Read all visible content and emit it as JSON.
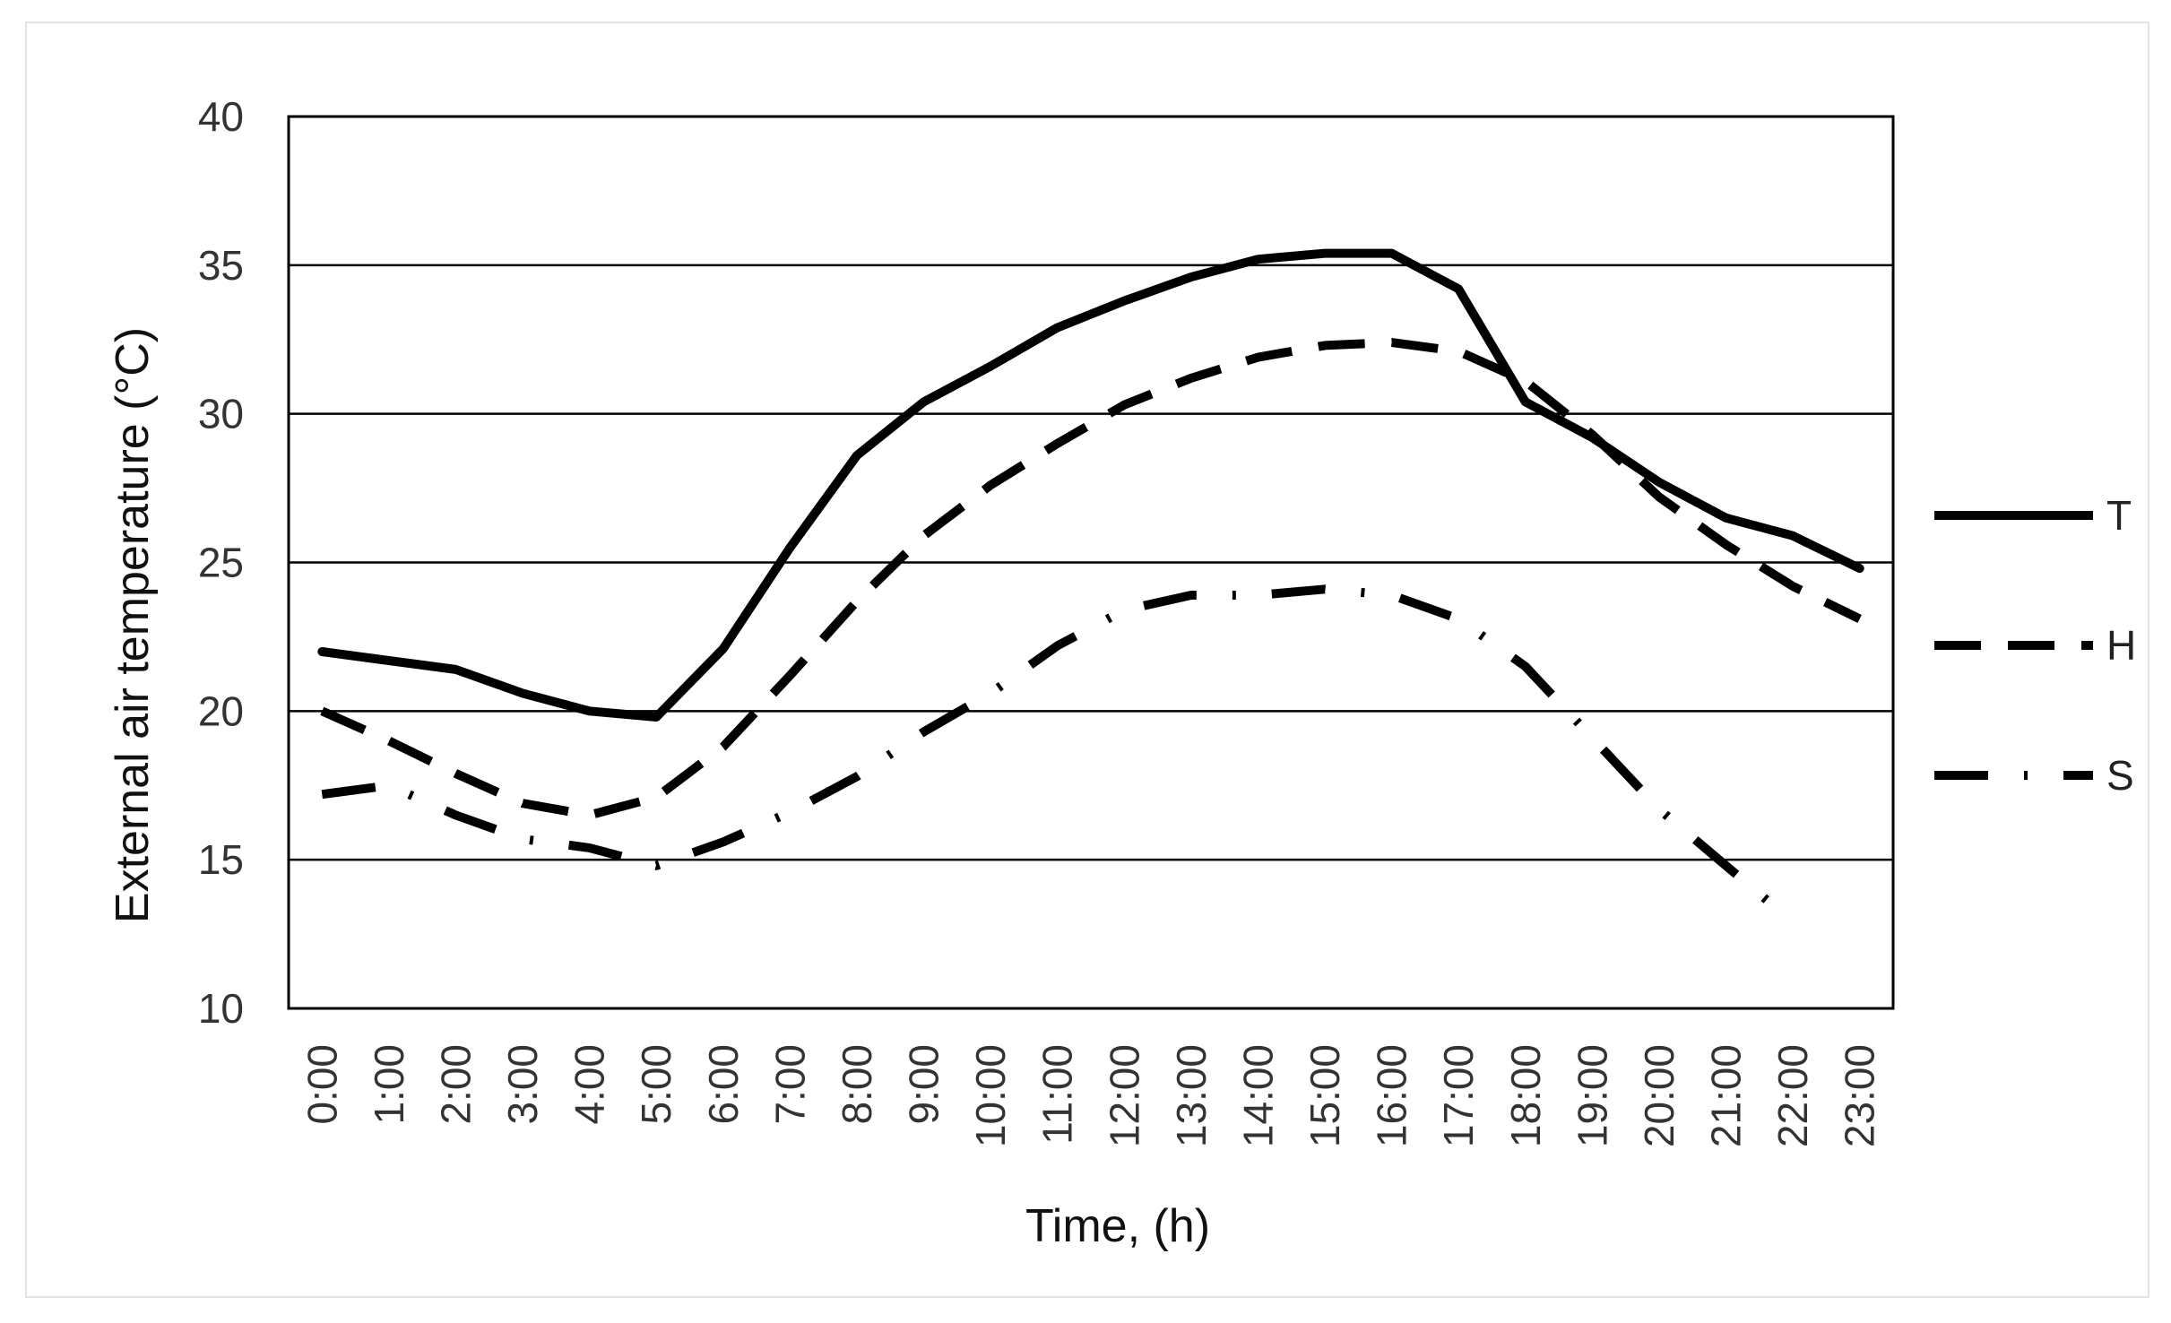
{
  "chart_data": {
    "type": "line",
    "title": "",
    "xlabel": "Time, (h)",
    "ylabel": "External air temperature (°C)",
    "ylim": [
      10,
      40
    ],
    "yticks": [
      "10",
      "15",
      "20",
      "25",
      "30",
      "35",
      "40"
    ],
    "grid": "horizontal",
    "legend_position": "right",
    "categories": [
      "0:00",
      "1:00",
      "2:00",
      "3:00",
      "4:00",
      "5:00",
      "6:00",
      "7:00",
      "8:00",
      "9:00",
      "10:00",
      "11:00",
      "12:00",
      "13:00",
      "14:00",
      "15:00",
      "16:00",
      "17:00",
      "18:00",
      "19:00",
      "20:00",
      "21:00",
      "22:00",
      "23:00"
    ],
    "series": [
      {
        "name": "T",
        "style": "solid",
        "values": [
          22.0,
          21.7,
          21.4,
          20.6,
          20.0,
          19.8,
          22.1,
          25.5,
          28.6,
          30.4,
          31.6,
          32.9,
          33.8,
          34.6,
          35.2,
          35.4,
          35.4,
          34.2,
          30.4,
          29.2,
          27.7,
          26.5,
          25.9,
          24.8
        ]
      },
      {
        "name": "H",
        "style": "dashed",
        "values": [
          20.0,
          19.0,
          17.9,
          16.9,
          16.5,
          17.1,
          18.8,
          21.2,
          23.7,
          25.9,
          27.6,
          29.0,
          30.3,
          31.2,
          31.9,
          32.3,
          32.4,
          32.1,
          31.1,
          29.3,
          27.2,
          25.6,
          24.2,
          23.1
        ]
      },
      {
        "name": "S",
        "style": "dash-dot",
        "values": [
          17.2,
          17.5,
          16.5,
          15.7,
          15.4,
          14.8,
          15.6,
          16.6,
          17.8,
          19.3,
          20.6,
          22.2,
          23.4,
          23.9,
          23.9,
          24.1,
          23.9,
          23.1,
          21.5,
          19.1,
          16.7,
          14.8,
          12.9,
          null
        ]
      }
    ],
    "colors": {
      "lines": "#000000",
      "grid": "#000000",
      "text": "#333333"
    }
  }
}
